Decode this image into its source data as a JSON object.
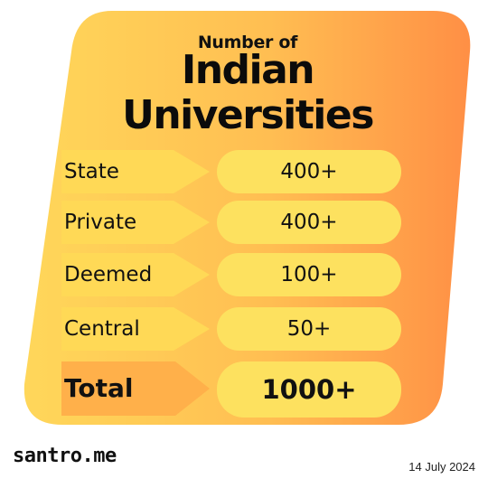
{
  "header": {
    "subtitle": "Number of",
    "title_line1": "Indian",
    "title_line2": "Universities"
  },
  "rows": [
    {
      "label": "State",
      "value": "400+"
    },
    {
      "label": "Private",
      "value": "400+"
    },
    {
      "label": "Deemed",
      "value": "100+"
    },
    {
      "label": "Central",
      "value": "50+"
    }
  ],
  "total": {
    "label": "Total",
    "value": "1000+"
  },
  "footer": {
    "brand": "santro.me",
    "date": "14 July 2024"
  },
  "colors": {
    "card_gradient_start": "#ffd75a",
    "card_gradient_end": "#ff8f45",
    "pill": "#fde15f",
    "tag": "#ffd956",
    "text": "#111111"
  }
}
